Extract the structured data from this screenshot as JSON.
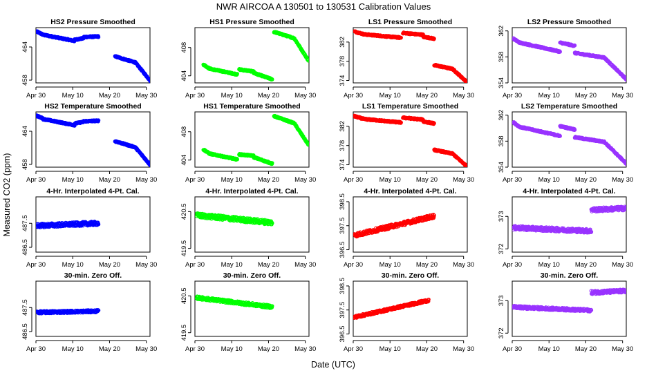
{
  "figure": {
    "title": "NWR    AIRCOA A    130501 to 130531    Calibration Values",
    "xlabel": "Date (UTC)",
    "ylabel": "Measured CO2 (ppm)"
  },
  "chart_data": [
    {
      "type": "scatter",
      "title": "HS2 Pressure Smoothed",
      "color": "#0000ff",
      "x_ticks": [
        "Apr 30",
        "May 10",
        "May 20",
        "May 30"
      ],
      "x_ticks_days": [
        0,
        10,
        20,
        30
      ],
      "xlim": [
        0,
        31
      ],
      "ylim": [
        457.5,
        467.5
      ],
      "y_ticks": [
        458,
        464
      ],
      "segments": [
        {
          "x": [
            0.2,
            2.0
          ],
          "y": [
            466.8,
            466.2
          ]
        },
        {
          "x": [
            2.0,
            10.5
          ],
          "y": [
            466.2,
            465.1
          ]
        },
        {
          "x": [
            10.5,
            13.0
          ],
          "y": [
            465.3,
            465.6
          ]
        },
        {
          "x": [
            13.0,
            17.0
          ],
          "y": [
            465.8,
            465.9
          ]
        },
        {
          "x": [
            21.5,
            27.0
          ],
          "y": [
            462.3,
            461.2
          ]
        },
        {
          "x": [
            27.0,
            31.2
          ],
          "y": [
            461.2,
            457.8
          ]
        }
      ]
    },
    {
      "type": "scatter",
      "title": "HS1 Pressure Smoothed",
      "color": "#00ff00",
      "x_ticks": [
        "Apr 30",
        "May 10",
        "May 20",
        "May 30"
      ],
      "x_ticks_days": [
        0,
        10,
        20,
        30
      ],
      "xlim": [
        0,
        31
      ],
      "ylim": [
        403,
        410.8
      ],
      "y_ticks": [
        404,
        408
      ],
      "segments": [
        {
          "x": [
            2.3,
            4.0
          ],
          "y": [
            405.6,
            405.0
          ]
        },
        {
          "x": [
            4.0,
            11.5
          ],
          "y": [
            405.0,
            404.2
          ]
        },
        {
          "x": [
            12.0,
            16.0
          ],
          "y": [
            404.9,
            404.6
          ]
        },
        {
          "x": [
            16.0,
            21.0
          ],
          "y": [
            404.4,
            403.5
          ]
        },
        {
          "x": [
            21.5,
            27.0
          ],
          "y": [
            410.2,
            409.3
          ]
        },
        {
          "x": [
            27.0,
            30.8
          ],
          "y": [
            409.3,
            406.2
          ]
        }
      ]
    },
    {
      "type": "scatter",
      "title": "LS1 Pressure Smoothed",
      "color": "#ff0000",
      "x_ticks": [
        "Apr 30",
        "May 10",
        "May 20",
        "May 30"
      ],
      "x_ticks_days": [
        0,
        10,
        20,
        30
      ],
      "xlim": [
        0,
        31
      ],
      "ylim": [
        373.5,
        385
      ],
      "y_ticks": [
        374,
        378,
        382
      ],
      "segments": [
        {
          "x": [
            0.3,
            3.0
          ],
          "y": [
            384.2,
            383.6
          ]
        },
        {
          "x": [
            3.0,
            13.0
          ],
          "y": [
            383.6,
            382.9
          ]
        },
        {
          "x": [
            13.5,
            19.0
          ],
          "y": [
            383.9,
            383.5
          ]
        },
        {
          "x": [
            19.0,
            22.0
          ],
          "y": [
            383.1,
            382.7
          ]
        },
        {
          "x": [
            22.0,
            27.0
          ],
          "y": [
            377.2,
            376.4
          ]
        },
        {
          "x": [
            27.0,
            31.0
          ],
          "y": [
            376.4,
            373.6
          ]
        }
      ]
    },
    {
      "type": "scatter",
      "title": "LS2 Pressure Smoothed",
      "color": "#9933ff",
      "x_ticks": [
        "Apr 30",
        "May 10",
        "May 20",
        "May 30"
      ],
      "x_ticks_days": [
        0,
        10,
        20,
        30
      ],
      "xlim": [
        0,
        31
      ],
      "ylim": [
        354,
        362.5
      ],
      "y_ticks": [
        354,
        358,
        362
      ],
      "segments": [
        {
          "x": [
            0.3,
            2.0
          ],
          "y": [
            360.8,
            360.2
          ]
        },
        {
          "x": [
            2.0,
            11.5
          ],
          "y": [
            360.2,
            359.0
          ]
        },
        {
          "x": [
            11.5,
            13.0
          ],
          "y": [
            359.0,
            358.8
          ]
        },
        {
          "x": [
            13.0,
            17.0
          ],
          "y": [
            360.2,
            359.7
          ]
        },
        {
          "x": [
            17.0,
            25.0
          ],
          "y": [
            358.6,
            357.9
          ]
        },
        {
          "x": [
            25.0,
            31.3
          ],
          "y": [
            357.9,
            354.4
          ]
        }
      ]
    },
    {
      "type": "scatter",
      "title": "HS2 Temperature Smoothed",
      "color": "#0000ff",
      "x_ticks": [
        "Apr 30",
        "May 10",
        "May 20",
        "May 30"
      ],
      "x_ticks_days": [
        0,
        10,
        20,
        30
      ],
      "xlim": [
        0,
        31
      ],
      "ylim": [
        457.5,
        467.5
      ],
      "y_ticks": [
        458,
        464
      ],
      "segments": [
        {
          "x": [
            0.2,
            2.0
          ],
          "y": [
            466.8,
            466.3
          ]
        },
        {
          "x": [
            2.0,
            10.5
          ],
          "y": [
            466.2,
            465.1
          ]
        },
        {
          "x": [
            10.5,
            13.0
          ],
          "y": [
            465.4,
            465.7
          ]
        },
        {
          "x": [
            13.0,
            17.0
          ],
          "y": [
            465.8,
            465.9
          ]
        },
        {
          "x": [
            21.5,
            27.0
          ],
          "y": [
            462.2,
            461.1
          ]
        },
        {
          "x": [
            27.0,
            31.2
          ],
          "y": [
            461.1,
            457.8
          ]
        }
      ]
    },
    {
      "type": "scatter",
      "title": "HS1 Temperature Smoothed",
      "color": "#00ff00",
      "x_ticks": [
        "Apr 30",
        "May 10",
        "May 20",
        "May 30"
      ],
      "x_ticks_days": [
        0,
        10,
        20,
        30
      ],
      "xlim": [
        0,
        31
      ],
      "ylim": [
        403,
        410.8
      ],
      "y_ticks": [
        404,
        408
      ],
      "segments": [
        {
          "x": [
            2.3,
            4.0
          ],
          "y": [
            405.5,
            404.9
          ]
        },
        {
          "x": [
            4.0,
            11.5
          ],
          "y": [
            404.9,
            404.1
          ]
        },
        {
          "x": [
            12.0,
            16.0
          ],
          "y": [
            404.8,
            404.6
          ]
        },
        {
          "x": [
            16.0,
            21.0
          ],
          "y": [
            404.4,
            403.5
          ]
        },
        {
          "x": [
            21.5,
            27.0
          ],
          "y": [
            410.2,
            409.2
          ]
        },
        {
          "x": [
            27.0,
            30.8
          ],
          "y": [
            409.2,
            406.2
          ]
        }
      ]
    },
    {
      "type": "scatter",
      "title": "LS1 Temperature Smoothed",
      "color": "#ff0000",
      "x_ticks": [
        "Apr 30",
        "May 10",
        "May 20",
        "May 30"
      ],
      "x_ticks_days": [
        0,
        10,
        20,
        30
      ],
      "xlim": [
        0,
        31
      ],
      "ylim": [
        373.5,
        385
      ],
      "y_ticks": [
        374,
        378,
        382
      ],
      "segments": [
        {
          "x": [
            0.3,
            3.0
          ],
          "y": [
            384.1,
            383.5
          ]
        },
        {
          "x": [
            3.0,
            13.0
          ],
          "y": [
            383.5,
            382.8
          ]
        },
        {
          "x": [
            13.5,
            19.0
          ],
          "y": [
            383.8,
            383.4
          ]
        },
        {
          "x": [
            19.0,
            22.0
          ],
          "y": [
            383.0,
            382.6
          ]
        },
        {
          "x": [
            22.0,
            27.0
          ],
          "y": [
            377.1,
            376.3
          ]
        },
        {
          "x": [
            27.0,
            31.0
          ],
          "y": [
            376.3,
            373.6
          ]
        }
      ]
    },
    {
      "type": "scatter",
      "title": "LS2 Temperature Smoothed",
      "color": "#9933ff",
      "x_ticks": [
        "Apr 30",
        "May 10",
        "May 20",
        "May 30"
      ],
      "x_ticks_days": [
        0,
        10,
        20,
        30
      ],
      "xlim": [
        0,
        31
      ],
      "ylim": [
        354,
        362.5
      ],
      "y_ticks": [
        354,
        358,
        362
      ],
      "segments": [
        {
          "x": [
            0.3,
            2.0
          ],
          "y": [
            360.9,
            360.2
          ]
        },
        {
          "x": [
            2.0,
            11.5
          ],
          "y": [
            360.2,
            359.0
          ]
        },
        {
          "x": [
            11.5,
            13.0
          ],
          "y": [
            359.0,
            358.8
          ]
        },
        {
          "x": [
            13.0,
            17.0
          ],
          "y": [
            360.3,
            359.8
          ]
        },
        {
          "x": [
            17.0,
            25.0
          ],
          "y": [
            358.6,
            357.9
          ]
        },
        {
          "x": [
            25.0,
            31.3
          ],
          "y": [
            357.9,
            354.4
          ]
        }
      ]
    },
    {
      "type": "scatter",
      "title": "4-Hr. Interpolated 4-Pt. Cal.",
      "color": "#0000ff",
      "x_ticks": [
        "Apr 30",
        "May 10",
        "May 20",
        "May 30"
      ],
      "x_ticks_days": [
        0,
        10,
        20,
        30
      ],
      "xlim": [
        0,
        31
      ],
      "ylim": [
        486.3,
        488.6
      ],
      "y_ticks": [
        486.5,
        487.5
      ],
      "segments": [
        {
          "x": [
            0.3,
            17.0
          ],
          "y": [
            487.4,
            487.5
          ],
          "spread": 0.08
        }
      ]
    },
    {
      "type": "scatter",
      "title": "4-Hr. Interpolated 4-Pt. Cal.",
      "color": "#00ff00",
      "x_ticks": [
        "Apr 30",
        "May 10",
        "May 20",
        "May 30"
      ],
      "x_ticks_days": [
        0,
        10,
        20,
        30
      ],
      "xlim": [
        0,
        31
      ],
      "ylim": [
        419.4,
        420.9
      ],
      "y_ticks": [
        419.5,
        420.5
      ],
      "segments": [
        {
          "x": [
            0.5,
            21.0
          ],
          "y": [
            420.4,
            420.2
          ],
          "spread": 0.06
        }
      ]
    },
    {
      "type": "scatter",
      "title": "4-Hr. Interpolated 4-Pt. Cal.",
      "color": "#ff0000",
      "x_ticks": [
        "Apr 30",
        "May 10",
        "May 20",
        "May 30"
      ],
      "x_ticks_days": [
        0,
        10,
        20,
        30
      ],
      "xlim": [
        0,
        31
      ],
      "ylim": [
        396.4,
        398.7
      ],
      "y_ticks": [
        396.5,
        397.5,
        398.5
      ],
      "segments": [
        {
          "x": [
            0.3,
            22.0
          ],
          "y": [
            397.1,
            397.9
          ],
          "spread": 0.08
        }
      ]
    },
    {
      "type": "scatter",
      "title": "4-Hr. Interpolated 4-Pt. Cal.",
      "color": "#9933ff",
      "x_ticks": [
        "Apr 30",
        "May 10",
        "May 20",
        "May 30"
      ],
      "x_ticks_days": [
        0,
        10,
        20,
        30
      ],
      "xlim": [
        0,
        31
      ],
      "ylim": [
        371.9,
        373.6
      ],
      "y_ticks": [
        372.0,
        373.0
      ],
      "segments": [
        {
          "x": [
            0.3,
            21.5
          ],
          "y": [
            372.65,
            372.55
          ],
          "spread": 0.06
        },
        {
          "x": [
            21.5,
            31.3
          ],
          "y": [
            373.2,
            373.25
          ],
          "spread": 0.06
        }
      ]
    },
    {
      "type": "scatter",
      "title": "30-min. Zero Off.",
      "color": "#0000ff",
      "x_ticks": [
        "Apr 30",
        "May 10",
        "May 20",
        "May 30"
      ],
      "x_ticks_days": [
        0,
        10,
        20,
        30
      ],
      "xlim": [
        0,
        31
      ],
      "ylim": [
        486.3,
        488.6
      ],
      "y_ticks": [
        486.5,
        487.5
      ],
      "segments": [
        {
          "x": [
            0.3,
            17.0
          ],
          "y": [
            487.3,
            487.35
          ],
          "spread": 0.05
        }
      ]
    },
    {
      "type": "scatter",
      "title": "30-min. Zero Off.",
      "color": "#00ff00",
      "x_ticks": [
        "Apr 30",
        "May 10",
        "May 20",
        "May 30"
      ],
      "x_ticks_days": [
        0,
        10,
        20,
        30
      ],
      "xlim": [
        0,
        31
      ],
      "ylim": [
        419.4,
        420.9
      ],
      "y_ticks": [
        419.5,
        420.5
      ],
      "segments": [
        {
          "x": [
            0.5,
            21.0
          ],
          "y": [
            420.45,
            420.2
          ],
          "spread": 0.04
        }
      ]
    },
    {
      "type": "scatter",
      "title": "30-min. Zero Off.",
      "color": "#ff0000",
      "x_ticks": [
        "Apr 30",
        "May 10",
        "May 20",
        "May 30"
      ],
      "x_ticks_days": [
        0,
        10,
        20,
        30
      ],
      "xlim": [
        0,
        31
      ],
      "ylim": [
        396.4,
        398.7
      ],
      "y_ticks": [
        396.5,
        397.5,
        398.5
      ],
      "segments": [
        {
          "x": [
            0.3,
            20.5
          ],
          "y": [
            397.2,
            397.9
          ],
          "spread": 0.05
        }
      ]
    },
    {
      "type": "scatter",
      "title": "30-min. Zero Off.",
      "color": "#9933ff",
      "x_ticks": [
        "Apr 30",
        "May 10",
        "May 20",
        "May 30"
      ],
      "x_ticks_days": [
        0,
        10,
        20,
        30
      ],
      "xlim": [
        0,
        31
      ],
      "ylim": [
        371.9,
        373.6
      ],
      "y_ticks": [
        372.0,
        373.0
      ],
      "segments": [
        {
          "x": [
            0.3,
            21.5
          ],
          "y": [
            372.8,
            372.7
          ],
          "spread": 0.04
        },
        {
          "x": [
            21.5,
            31.3
          ],
          "y": [
            373.25,
            373.3
          ],
          "spread": 0.05
        }
      ]
    }
  ]
}
